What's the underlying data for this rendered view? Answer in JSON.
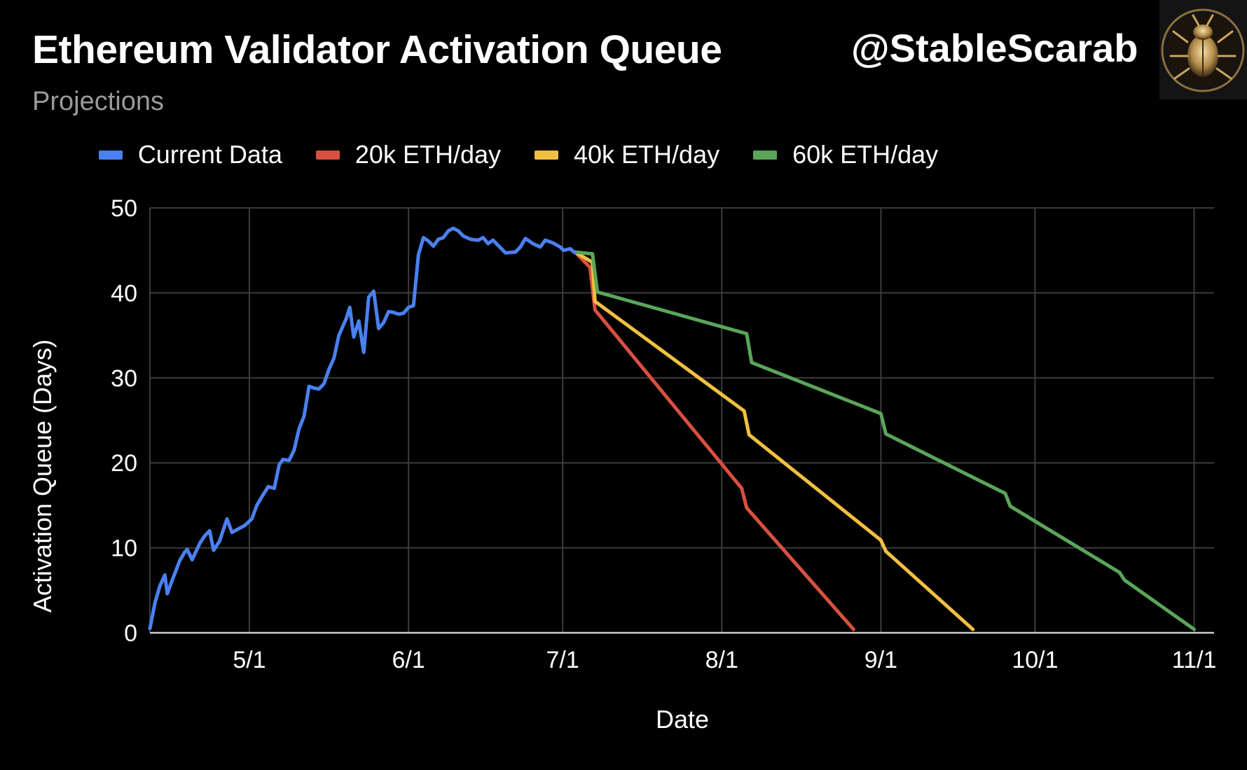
{
  "header": {
    "title": "Ethereum Validator Activation Queue",
    "subtitle": "Projections",
    "handle": "@StableScarab"
  },
  "chart_data": {
    "type": "line",
    "title": "Ethereum Validator Activation Queue",
    "subtitle": "Projections",
    "xlabel": "Date",
    "ylabel": "Activation Queue (Days)",
    "x_unit": "days since 4/1",
    "xlim": [
      0,
      214
    ],
    "ylim": [
      0,
      50
    ],
    "yticks": [
      0,
      10,
      20,
      30,
      40,
      50
    ],
    "xticks": [
      {
        "label": "5/1",
        "x": 20
      },
      {
        "label": "6/1",
        "x": 52
      },
      {
        "label": "7/1",
        "x": 83
      },
      {
        "label": "8/1",
        "x": 115
      },
      {
        "label": "9/1",
        "x": 147
      },
      {
        "label": "10/1",
        "x": 178
      },
      {
        "label": "11/1",
        "x": 210
      }
    ],
    "legend_position": "top",
    "grid": true,
    "series": [
      {
        "name": "Current Data",
        "color": "#4a80f0",
        "points": [
          [
            0,
            0.5
          ],
          [
            1,
            3.5
          ],
          [
            2,
            5.5
          ],
          [
            3,
            6.8
          ],
          [
            3.5,
            4.6
          ],
          [
            4.5,
            6.2
          ],
          [
            6,
            8.5
          ],
          [
            7,
            9.5
          ],
          [
            7.5,
            9.8
          ],
          [
            8.5,
            8.6
          ],
          [
            10,
            10.5
          ],
          [
            11,
            11.4
          ],
          [
            12,
            12.0
          ],
          [
            12.8,
            9.7
          ],
          [
            14,
            10.8
          ],
          [
            15.5,
            13.4
          ],
          [
            16.5,
            11.8
          ],
          [
            18,
            12.3
          ],
          [
            19,
            12.6
          ],
          [
            20.5,
            13.4
          ],
          [
            21.5,
            15.0
          ],
          [
            22.5,
            16.0
          ],
          [
            23.8,
            17.2
          ],
          [
            25,
            17.0
          ],
          [
            26,
            19.8
          ],
          [
            26.8,
            20.4
          ],
          [
            28,
            20.3
          ],
          [
            29,
            21.5
          ],
          [
            30,
            24.0
          ],
          [
            31,
            25.5
          ],
          [
            32,
            29.0
          ],
          [
            33,
            28.8
          ],
          [
            34,
            28.7
          ],
          [
            35,
            29.3
          ],
          [
            36,
            31.0
          ],
          [
            37,
            32.3
          ],
          [
            38,
            35.0
          ],
          [
            39.5,
            37.0
          ],
          [
            40.2,
            38.3
          ],
          [
            41,
            34.8
          ],
          [
            42,
            36.7
          ],
          [
            43,
            33.0
          ],
          [
            44,
            39.5
          ],
          [
            45,
            40.2
          ],
          [
            46,
            35.8
          ],
          [
            47,
            36.5
          ],
          [
            48,
            37.8
          ],
          [
            49,
            37.7
          ],
          [
            50,
            37.5
          ],
          [
            51,
            37.6
          ],
          [
            52,
            38.3
          ],
          [
            53,
            38.5
          ],
          [
            54,
            44.5
          ],
          [
            55,
            46.5
          ],
          [
            56,
            46.1
          ],
          [
            57,
            45.5
          ],
          [
            58,
            46.3
          ],
          [
            59,
            46.5
          ],
          [
            60,
            47.3
          ],
          [
            61,
            47.6
          ],
          [
            62,
            47.3
          ],
          [
            63,
            46.7
          ],
          [
            64.5,
            46.3
          ],
          [
            66,
            46.2
          ],
          [
            67,
            46.5
          ],
          [
            68,
            45.8
          ],
          [
            69,
            46.2
          ],
          [
            70,
            45.6
          ],
          [
            71.5,
            44.7
          ],
          [
            73.5,
            44.8
          ],
          [
            74.5,
            45.4
          ],
          [
            75.5,
            46.4
          ],
          [
            77,
            45.8
          ],
          [
            78.5,
            45.4
          ],
          [
            79.5,
            46.2
          ],
          [
            81,
            45.9
          ],
          [
            82.5,
            45.4
          ],
          [
            83.2,
            45.0
          ],
          [
            84.5,
            45.2
          ],
          [
            85.5,
            44.7
          ]
        ]
      },
      {
        "name": "20k ETH/day",
        "color": "#d95040",
        "points": [
          [
            85.5,
            44.8
          ],
          [
            88.5,
            43.0
          ],
          [
            89.5,
            38.0
          ],
          [
            119,
            17.0
          ],
          [
            120,
            14.7
          ],
          [
            141.5,
            0.4
          ]
        ]
      },
      {
        "name": "40k ETH/day",
        "color": "#f2c040",
        "points": [
          [
            85.5,
            44.8
          ],
          [
            89,
            43.6
          ],
          [
            89.5,
            39.0
          ],
          [
            119.5,
            26.1
          ],
          [
            120.5,
            23.3
          ],
          [
            147,
            10.9
          ],
          [
            148,
            9.6
          ],
          [
            165.5,
            0.4
          ]
        ]
      },
      {
        "name": "60k ETH/day",
        "color": "#5aa55a",
        "points": [
          [
            85.5,
            44.8
          ],
          [
            89,
            44.6
          ],
          [
            90,
            40.1
          ],
          [
            120,
            35.2
          ],
          [
            121,
            31.8
          ],
          [
            147,
            25.8
          ],
          [
            148,
            23.4
          ],
          [
            172,
            16.4
          ],
          [
            173,
            14.9
          ],
          [
            195,
            7.1
          ],
          [
            196,
            6.2
          ],
          [
            210,
            0.4
          ]
        ]
      }
    ]
  }
}
